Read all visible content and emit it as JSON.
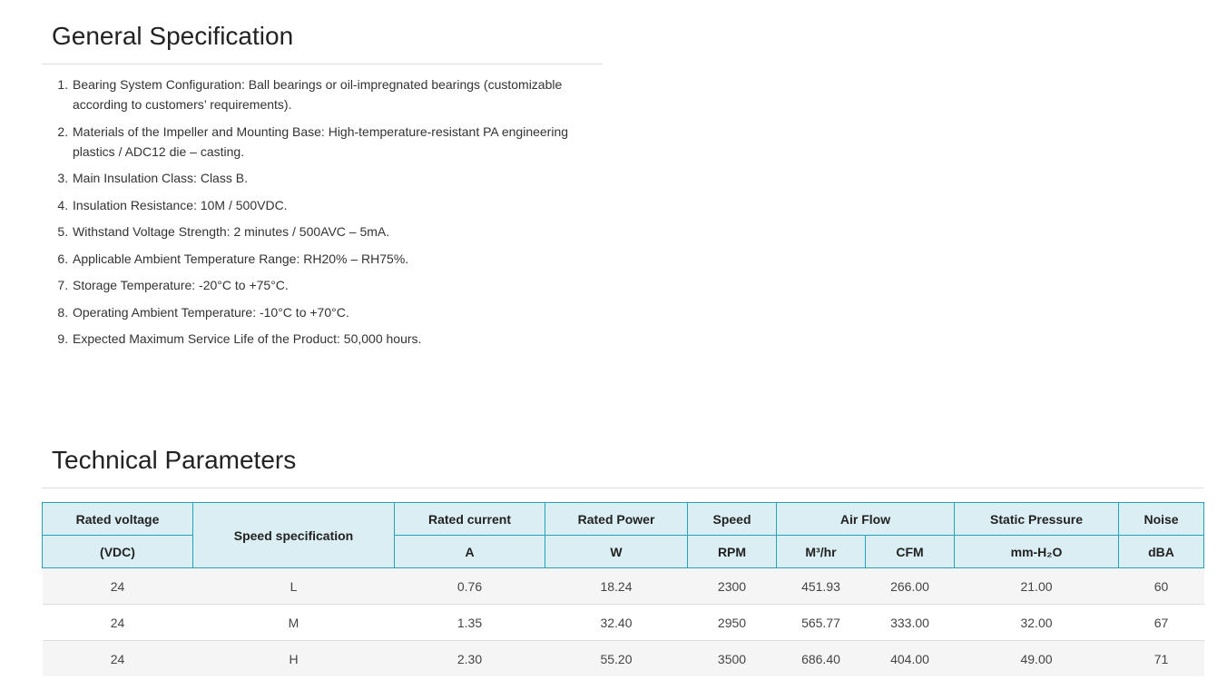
{
  "general": {
    "title": "General Specification",
    "items": [
      "Bearing System Configuration: Ball bearings or oil-impregnated bearings (customizable according to customers’ requirements).",
      "Materials of the Impeller and Mounting Base: High-temperature-resistant PA engineering plastics / ADC12 die – casting.",
      "Main Insulation Class: Class B.",
      "Insulation Resistance: 10M / 500VDC.",
      "Withstand Voltage Strength: 2 minutes / 500AVC – 5mA.",
      "Applicable Ambient Temperature Range: RH20% – RH75%.",
      "Storage Temperature: -20°C to +75°C.",
      "Operating Ambient Temperature: -10°C to +70°C.",
      "Expected Maximum Service Life of the Product: 50,000 hours."
    ]
  },
  "technical": {
    "title": "Technical Parameters",
    "header_top": [
      "Rated voltage",
      "Speed specification",
      "Rated current",
      "Rated Power",
      "Speed",
      "Air Flow",
      "Static Pressure",
      "Noise"
    ],
    "header_units": [
      "(VDC)",
      "A",
      "W",
      "RPM",
      "M³/hr",
      "CFM",
      "mm-H₂O",
      "dBA"
    ],
    "rows": [
      [
        "24",
        "L",
        "0.76",
        "18.24",
        "2300",
        "451.93",
        "266.00",
        "21.00",
        "60"
      ],
      [
        "24",
        "M",
        "1.35",
        "32.40",
        "2950",
        "565.77",
        "333.00",
        "32.00",
        "67"
      ],
      [
        "24",
        "H",
        "2.30",
        "55.20",
        "3500",
        "686.40",
        "404.00",
        "49.00",
        "71"
      ]
    ]
  }
}
